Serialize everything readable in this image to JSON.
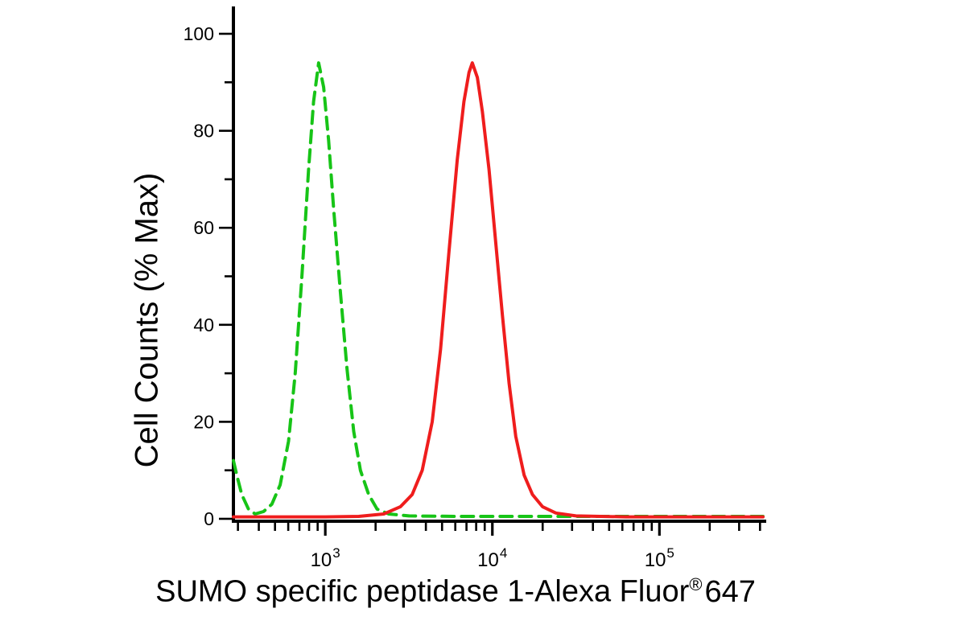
{
  "chart_data": {
    "type": "line",
    "subtype": "flow-cytometry-histogram-overlay",
    "title": "",
    "xlabel_main": "SUMO specific peptidase 1-Alexa Fluor",
    "xlabel_reg": "®",
    "xlabel_suffix": "647",
    "ylabel": "Cell Counts (% Max)",
    "x_scale": "log10",
    "xlog_range": [
      2.45,
      5.62
    ],
    "ylim": [
      0,
      100
    ],
    "yticks_major": [
      0,
      20,
      40,
      60,
      80,
      100
    ],
    "yticks_minor": [
      10,
      30,
      50,
      70,
      90
    ],
    "xtick_base": "10",
    "xticks_major_exponents": [
      3,
      4,
      5
    ],
    "grid": "off",
    "legend": "none",
    "background": "#ffffff",
    "axis_color": "#000000",
    "series": [
      {
        "key": "green-dashed-curve",
        "name": "green dashed histogram (left population)",
        "color": "#17c417",
        "line_style": "dashed",
        "peak_approx": {
          "x": 900,
          "y_pct": 94
        },
        "points_logx_pct": [
          [
            2.45,
            12
          ],
          [
            2.47,
            9
          ],
          [
            2.5,
            5
          ],
          [
            2.54,
            2
          ],
          [
            2.58,
            1
          ],
          [
            2.63,
            1.5
          ],
          [
            2.68,
            3
          ],
          [
            2.73,
            7
          ],
          [
            2.78,
            16
          ],
          [
            2.82,
            30
          ],
          [
            2.86,
            50
          ],
          [
            2.9,
            72
          ],
          [
            2.93,
            86
          ],
          [
            2.96,
            94
          ],
          [
            2.99,
            89
          ],
          [
            3.02,
            78
          ],
          [
            3.05,
            64
          ],
          [
            3.09,
            47
          ],
          [
            3.13,
            31
          ],
          [
            3.17,
            18
          ],
          [
            3.21,
            10
          ],
          [
            3.26,
            5
          ],
          [
            3.31,
            2
          ],
          [
            3.38,
            1
          ],
          [
            3.5,
            0.6
          ],
          [
            3.8,
            0.5
          ],
          [
            4.2,
            0.5
          ],
          [
            4.6,
            0.5
          ],
          [
            5.0,
            0.5
          ],
          [
            5.62,
            0.5
          ]
        ]
      },
      {
        "key": "red-solid-curve",
        "name": "red solid histogram (right population)",
        "color": "#ef1d1d",
        "line_style": "solid",
        "peak_approx": {
          "x": 7500,
          "y_pct": 94
        },
        "points_logx_pct": [
          [
            2.45,
            0.4
          ],
          [
            3.0,
            0.4
          ],
          [
            3.2,
            0.5
          ],
          [
            3.35,
            1
          ],
          [
            3.45,
            2.5
          ],
          [
            3.52,
            5
          ],
          [
            3.58,
            10
          ],
          [
            3.64,
            20
          ],
          [
            3.69,
            35
          ],
          [
            3.74,
            55
          ],
          [
            3.79,
            74
          ],
          [
            3.83,
            86
          ],
          [
            3.86,
            92
          ],
          [
            3.88,
            94
          ],
          [
            3.91,
            91
          ],
          [
            3.94,
            84
          ],
          [
            3.98,
            72
          ],
          [
            4.02,
            57
          ],
          [
            4.06,
            42
          ],
          [
            4.1,
            28
          ],
          [
            4.14,
            17
          ],
          [
            4.19,
            9
          ],
          [
            4.24,
            5
          ],
          [
            4.3,
            2.5
          ],
          [
            4.38,
            1.2
          ],
          [
            4.5,
            0.6
          ],
          [
            4.8,
            0.4
          ],
          [
            5.2,
            0.4
          ],
          [
            5.62,
            0.4
          ]
        ]
      }
    ]
  }
}
